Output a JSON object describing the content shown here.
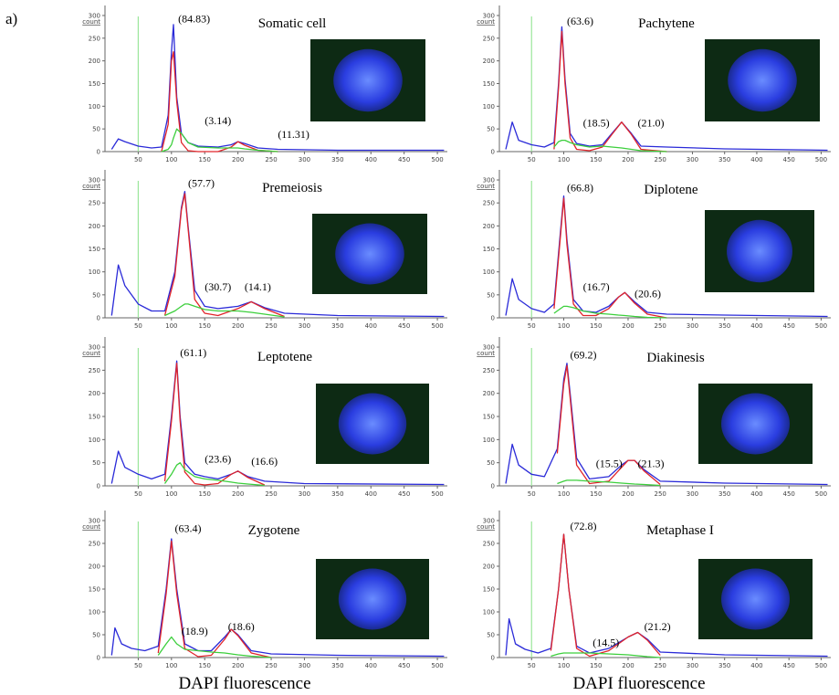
{
  "panel_label": "a)",
  "x_axis_labels": [
    "DAPI fluorescence",
    "DAPI fluorescence"
  ],
  "chart_data": [
    {
      "type": "line",
      "title": "Somatic cell",
      "y_label": "count",
      "annotations": [
        "(84.83)",
        "(3.14)",
        "(11.31)"
      ],
      "xlim": [
        0,
        515
      ],
      "ylim": [
        0,
        310
      ],
      "xticks": [
        50,
        100,
        150,
        200,
        250,
        300,
        350,
        400,
        450,
        500
      ],
      "yticks": [
        0,
        50,
        100,
        150,
        200,
        250,
        300
      ],
      "gate": 50,
      "x": [
        10,
        20,
        30,
        50,
        70,
        85,
        95,
        100,
        103,
        108,
        115,
        125,
        140,
        170,
        190,
        200,
        210,
        230,
        260,
        350,
        510
      ],
      "series": [
        {
          "color": "#2a2ad8",
          "values": [
            5,
            28,
            22,
            12,
            8,
            10,
            80,
            220,
            280,
            120,
            40,
            20,
            12,
            10,
            15,
            22,
            18,
            8,
            5,
            3,
            3
          ]
        },
        {
          "color": "#e0242a",
          "values": [
            null,
            null,
            null,
            null,
            null,
            0,
            60,
            200,
            220,
            110,
            20,
            2,
            0,
            0,
            10,
            22,
            14,
            3,
            0,
            null,
            null
          ]
        },
        {
          "color": "#3ccf3c",
          "values": [
            null,
            null,
            null,
            null,
            null,
            0,
            5,
            15,
            30,
            50,
            40,
            20,
            10,
            8,
            8,
            8,
            6,
            3,
            0,
            null,
            null
          ]
        }
      ]
    },
    {
      "type": "line",
      "title": "Pachytene",
      "y_label": "count",
      "annotations": [
        "(63.6)",
        "(18.5)",
        "(21.0)"
      ],
      "xlim": [
        0,
        515
      ],
      "ylim": [
        0,
        310
      ],
      "xticks": [
        50,
        100,
        150,
        200,
        250,
        300,
        350,
        400,
        450,
        500
      ],
      "yticks": [
        0,
        50,
        100,
        150,
        200,
        250,
        300
      ],
      "gate": 50,
      "x": [
        10,
        20,
        30,
        50,
        70,
        85,
        92,
        97,
        102,
        110,
        120,
        140,
        160,
        175,
        190,
        205,
        220,
        260,
        350,
        510
      ],
      "series": [
        {
          "color": "#2a2ad8",
          "values": [
            5,
            65,
            25,
            15,
            10,
            20,
            150,
            275,
            160,
            40,
            18,
            12,
            15,
            40,
            65,
            40,
            12,
            10,
            6,
            3
          ]
        },
        {
          "color": "#e0242a",
          "values": [
            null,
            null,
            null,
            null,
            null,
            5,
            140,
            265,
            150,
            30,
            5,
            2,
            10,
            38,
            65,
            38,
            5,
            0,
            null,
            null
          ]
        },
        {
          "color": "#3ccf3c",
          "values": [
            null,
            null,
            null,
            null,
            null,
            10,
            22,
            25,
            25,
            20,
            15,
            10,
            12,
            10,
            8,
            5,
            2,
            0,
            null,
            null
          ]
        }
      ]
    },
    {
      "type": "line",
      "title": "Premeiosis",
      "y_label": "count",
      "annotations": [
        "(57.7)",
        "(30.7)",
        "(14.1)"
      ],
      "xlim": [
        0,
        515
      ],
      "ylim": [
        0,
        310
      ],
      "xticks": [
        50,
        100,
        150,
        200,
        250,
        300,
        350,
        400,
        450,
        500
      ],
      "yticks": [
        0,
        50,
        100,
        150,
        200,
        250,
        300
      ],
      "gate": 50,
      "x": [
        10,
        20,
        30,
        50,
        70,
        90,
        105,
        115,
        120,
        125,
        135,
        150,
        170,
        200,
        220,
        240,
        270,
        350,
        510
      ],
      "series": [
        {
          "color": "#2a2ad8",
          "values": [
            5,
            115,
            70,
            30,
            15,
            15,
            100,
            240,
            275,
            200,
            60,
            25,
            20,
            25,
            35,
            22,
            10,
            5,
            3
          ]
        },
        {
          "color": "#e0242a",
          "values": [
            null,
            null,
            null,
            null,
            null,
            5,
            90,
            235,
            270,
            195,
            40,
            10,
            5,
            20,
            35,
            20,
            3,
            null,
            null
          ]
        },
        {
          "color": "#3ccf3c",
          "values": [
            null,
            null,
            null,
            null,
            null,
            5,
            15,
            25,
            30,
            30,
            25,
            18,
            15,
            15,
            12,
            8,
            2,
            null,
            null
          ]
        }
      ]
    },
    {
      "type": "line",
      "title": "Diplotene",
      "y_label": "count",
      "annotations": [
        "(66.8)",
        "(16.7)",
        "(20.6)"
      ],
      "xlim": [
        0,
        515
      ],
      "ylim": [
        0,
        310
      ],
      "xticks": [
        50,
        100,
        150,
        200,
        250,
        300,
        350,
        400,
        450,
        500
      ],
      "yticks": [
        0,
        50,
        100,
        150,
        200,
        250,
        300
      ],
      "gate": 50,
      "x": [
        10,
        20,
        30,
        50,
        70,
        85,
        95,
        100,
        105,
        115,
        130,
        150,
        170,
        185,
        195,
        210,
        230,
        260,
        350,
        510
      ],
      "series": [
        {
          "color": "#2a2ad8",
          "values": [
            5,
            85,
            40,
            20,
            12,
            30,
            190,
            265,
            170,
            40,
            15,
            12,
            25,
            45,
            55,
            35,
            12,
            8,
            6,
            3
          ]
        },
        {
          "color": "#e0242a",
          "values": [
            null,
            null,
            null,
            null,
            null,
            20,
            180,
            260,
            160,
            30,
            5,
            5,
            20,
            45,
            55,
            32,
            8,
            0,
            null,
            null
          ]
        },
        {
          "color": "#3ccf3c",
          "values": [
            null,
            null,
            null,
            null,
            null,
            10,
            20,
            25,
            25,
            22,
            15,
            10,
            8,
            6,
            5,
            3,
            1,
            0,
            null,
            null
          ]
        }
      ]
    },
    {
      "type": "line",
      "title": "Leptotene",
      "y_label": "count",
      "annotations": [
        "(61.1)",
        "(23.6)",
        "(16.6)"
      ],
      "xlim": [
        0,
        515
      ],
      "ylim": [
        0,
        310
      ],
      "xticks": [
        50,
        100,
        150,
        200,
        250,
        300,
        350,
        400,
        450,
        500
      ],
      "yticks": [
        0,
        50,
        100,
        150,
        200,
        250,
        300
      ],
      "gate": 50,
      "x": [
        10,
        20,
        30,
        50,
        70,
        90,
        100,
        108,
        113,
        120,
        135,
        150,
        170,
        190,
        200,
        215,
        240,
        300,
        510
      ],
      "series": [
        {
          "color": "#2a2ad8",
          "values": [
            5,
            75,
            40,
            25,
            15,
            25,
            150,
            270,
            150,
            50,
            25,
            20,
            15,
            25,
            32,
            20,
            10,
            5,
            3
          ]
        },
        {
          "color": "#e0242a",
          "values": [
            null,
            null,
            null,
            null,
            null,
            10,
            140,
            265,
            140,
            30,
            5,
            2,
            5,
            25,
            32,
            18,
            2,
            null,
            null
          ]
        },
        {
          "color": "#3ccf3c",
          "values": [
            null,
            null,
            null,
            null,
            null,
            5,
            25,
            45,
            50,
            35,
            20,
            15,
            12,
            8,
            6,
            4,
            1,
            null,
            null
          ]
        }
      ]
    },
    {
      "type": "line",
      "title": "Diakinesis",
      "y_label": "count",
      "annotations": [
        "(69.2)",
        "(15.5)",
        "(21.3)"
      ],
      "xlim": [
        0,
        515
      ],
      "ylim": [
        0,
        310
      ],
      "xticks": [
        50,
        100,
        150,
        200,
        250,
        300,
        350,
        400,
        450,
        500
      ],
      "yticks": [
        0,
        50,
        100,
        150,
        200,
        250,
        300
      ],
      "gate": 50,
      "x": [
        10,
        20,
        30,
        50,
        70,
        90,
        100,
        105,
        110,
        120,
        140,
        170,
        190,
        200,
        210,
        225,
        250,
        350,
        510
      ],
      "series": [
        {
          "color": "#2a2ad8",
          "values": [
            5,
            90,
            45,
            25,
            20,
            80,
            230,
            265,
            200,
            60,
            15,
            20,
            45,
            55,
            55,
            35,
            10,
            6,
            3
          ]
        },
        {
          "color": "#e0242a",
          "values": [
            null,
            null,
            null,
            null,
            null,
            70,
            220,
            260,
            190,
            45,
            5,
            10,
            40,
            55,
            55,
            32,
            3,
            null,
            null
          ]
        },
        {
          "color": "#3ccf3c",
          "values": [
            null,
            null,
            null,
            null,
            null,
            5,
            10,
            12,
            12,
            12,
            10,
            8,
            6,
            5,
            4,
            3,
            1,
            null,
            null
          ]
        }
      ]
    },
    {
      "type": "line",
      "title": "Zygotene",
      "y_label": "count",
      "annotations": [
        "(63.4)",
        "(18.9)",
        "(18.6)"
      ],
      "xlim": [
        0,
        515
      ],
      "ylim": [
        0,
        310
      ],
      "xticks": [
        50,
        100,
        150,
        200,
        250,
        300,
        350,
        400,
        450,
        500
      ],
      "yticks": [
        0,
        50,
        100,
        150,
        200,
        250,
        300
      ],
      "gate": 50,
      "x": [
        10,
        15,
        25,
        40,
        60,
        80,
        92,
        100,
        108,
        120,
        140,
        160,
        180,
        190,
        200,
        220,
        250,
        350,
        510
      ],
      "series": [
        {
          "color": "#2a2ad8",
          "values": [
            5,
            65,
            30,
            20,
            15,
            25,
            150,
            260,
            150,
            30,
            15,
            15,
            45,
            62,
            50,
            15,
            8,
            5,
            3
          ]
        },
        {
          "color": "#e0242a",
          "values": [
            null,
            null,
            null,
            null,
            null,
            10,
            140,
            255,
            140,
            20,
            2,
            5,
            40,
            62,
            48,
            10,
            0,
            null,
            null
          ]
        },
        {
          "color": "#3ccf3c",
          "values": [
            null,
            null,
            null,
            null,
            null,
            5,
            30,
            45,
            30,
            18,
            15,
            12,
            10,
            8,
            6,
            3,
            0,
            null,
            null
          ]
        }
      ]
    },
    {
      "type": "line",
      "title": "Metaphase I",
      "y_label": "count",
      "annotations": [
        "(72.8)",
        "(14.5)",
        "(21.2)"
      ],
      "xlim": [
        0,
        515
      ],
      "ylim": [
        0,
        310
      ],
      "xticks": [
        50,
        100,
        150,
        200,
        250,
        300,
        350,
        400,
        450,
        500
      ],
      "yticks": [
        0,
        50,
        100,
        150,
        200,
        250,
        300
      ],
      "gate": 50,
      "x": [
        10,
        15,
        25,
        40,
        60,
        80,
        92,
        100,
        108,
        120,
        140,
        170,
        200,
        215,
        230,
        250,
        350,
        510
      ],
      "series": [
        {
          "color": "#2a2ad8",
          "values": [
            5,
            85,
            30,
            18,
            10,
            20,
            150,
            270,
            150,
            25,
            10,
            20,
            45,
            55,
            40,
            12,
            6,
            3
          ]
        },
        {
          "color": "#e0242a",
          "values": [
            null,
            null,
            null,
            null,
            null,
            15,
            150,
            270,
            150,
            20,
            3,
            15,
            45,
            55,
            38,
            5,
            null,
            null
          ]
        },
        {
          "color": "#3ccf3c",
          "values": [
            null,
            null,
            null,
            null,
            null,
            3,
            8,
            10,
            10,
            10,
            10,
            8,
            6,
            4,
            2,
            0,
            null,
            null
          ]
        }
      ]
    }
  ]
}
